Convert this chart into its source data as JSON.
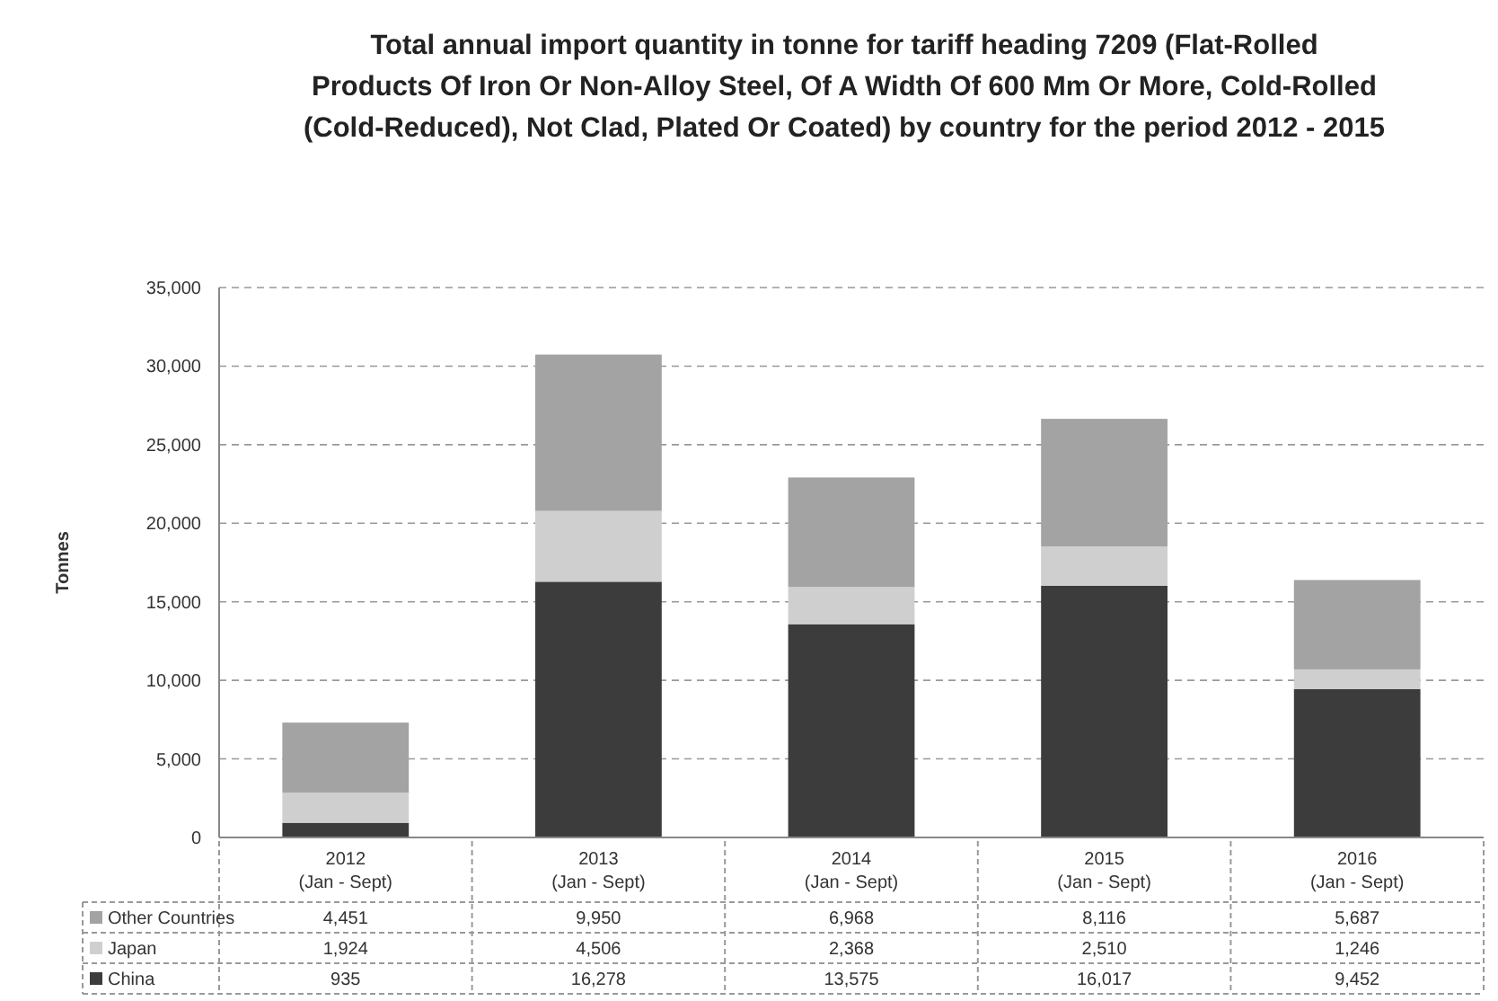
{
  "chart_data": {
    "type": "bar",
    "stacked": true,
    "title": "Total annual import quantity in tonne for tariff heading 7209 (Flat-Rolled Products Of Iron Or Non-Alloy Steel, Of A Width Of 600 Mm Or More, Cold-Rolled (Cold-Reduced), Not Clad, Plated Or Coated) by country for the period 2012 - 2015",
    "ylabel": "Tonnes",
    "categories": [
      "2012 (Jan - Sept)",
      "2013 (Jan - Sept)",
      "2014 (Jan - Sept)",
      "2015 (Jan - Sept)",
      "2016 (Jan - Sept)"
    ],
    "series": [
      {
        "name": "China",
        "color": "#3c3c3c",
        "values": [
          935,
          16278,
          13575,
          16017,
          9452
        ],
        "value_labels": [
          "935",
          "16,278",
          "13,575",
          "16,017",
          "9,452"
        ]
      },
      {
        "name": "Japan",
        "color": "#cfcfcf",
        "values": [
          1924,
          4506,
          2368,
          2510,
          1246
        ],
        "value_labels": [
          "1,924",
          "4,506",
          "2,368",
          "2,510",
          "1,246"
        ]
      },
      {
        "name": "Other Countries",
        "color": "#a3a3a3",
        "values": [
          4451,
          9950,
          6968,
          8116,
          5687
        ],
        "value_labels": [
          "4,451",
          "9,950",
          "6,968",
          "8,116",
          "5,687"
        ]
      }
    ],
    "ylim": [
      0,
      35000
    ],
    "yticks": [
      {
        "value": 0,
        "label": "0"
      },
      {
        "value": 5000,
        "label": "5,000"
      },
      {
        "value": 10000,
        "label": "10,000"
      },
      {
        "value": 15000,
        "label": "15,000"
      },
      {
        "value": 20000,
        "label": "20,000"
      },
      {
        "value": 25000,
        "label": "25,000"
      },
      {
        "value": 30000,
        "label": "30,000"
      },
      {
        "value": 35000,
        "label": "35,000"
      }
    ],
    "grid": "y",
    "legend": "bottom"
  }
}
